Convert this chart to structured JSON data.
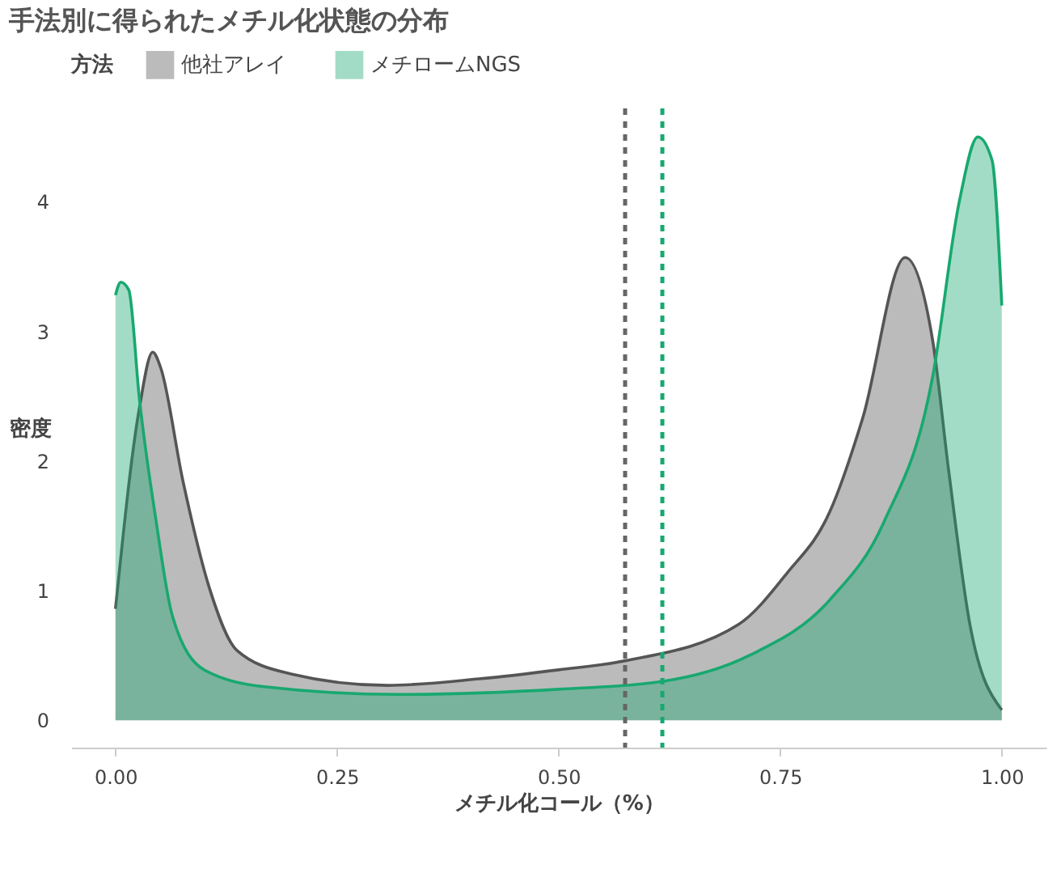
{
  "chart_data": {
    "type": "area",
    "title": "手法別に得られたメチル化状態の分布",
    "xlabel": "メチル化コール（%）",
    "ylabel": "密度",
    "legend_title": "方法",
    "legend": "top",
    "xlim": [
      -0.05,
      1.05
    ],
    "ylim": [
      -0.21,
      4.72
    ],
    "xticks": [
      {
        "value": 0,
        "label": "0.00"
      },
      {
        "value": 0.25,
        "label": "0.25"
      },
      {
        "value": 0.5,
        "label": "0.50"
      },
      {
        "value": 0.75,
        "label": "0.75"
      },
      {
        "value": 1,
        "label": "1.00"
      }
    ],
    "yticks": [
      0,
      1,
      2,
      3,
      4
    ],
    "grid": false,
    "series": [
      {
        "name": "他社アレイ",
        "color": "#555555",
        "x": [
          0,
          0.027,
          0.042,
          0.051,
          0.076,
          0.106,
          0.137,
          0.197,
          0.307,
          0.41,
          0.5,
          0.575,
          0.703,
          0.757,
          0.806,
          0.843,
          0.891,
          0.922,
          0.94,
          0.964,
          1.0
        ],
        "values": [
          0.86,
          2.41,
          2.84,
          2.72,
          1.85,
          1.02,
          0.54,
          0.36,
          0.27,
          0.32,
          0.39,
          0.46,
          0.74,
          1.13,
          1.61,
          2.33,
          3.57,
          2.93,
          1.93,
          0.74,
          0.08
        ]
      },
      {
        "name": "メチロームNGS",
        "color": "#18a870",
        "x": [
          0,
          0.006,
          0.015,
          0.027,
          0.046,
          0.064,
          0.1,
          0.168,
          0.32,
          0.5,
          0.617,
          0.715,
          0.806,
          0.867,
          0.922,
          0.952,
          0.973,
          0.989,
          1.0
        ],
        "values": [
          3.28,
          3.38,
          3.32,
          2.48,
          1.53,
          0.81,
          0.39,
          0.26,
          0.2,
          0.24,
          0.3,
          0.5,
          0.93,
          1.53,
          2.65,
          4.0,
          4.5,
          4.32,
          3.2
        ]
      }
    ],
    "ref_lines": [
      {
        "axis": "x",
        "value": 0.575,
        "color": "#666666",
        "line_style": "dashed"
      },
      {
        "axis": "x",
        "value": 0.617,
        "color": "#18a870",
        "line_style": "dashed"
      }
    ]
  }
}
